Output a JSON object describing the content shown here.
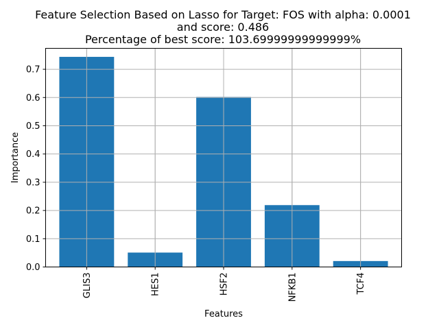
{
  "chart_data": {
    "type": "bar",
    "title": [
      "Feature Selection Based on Lasso for Target: FOS with alpha: 0.0001",
      "and score: 0.486",
      "Percentage of best score: 103.69999999999999%"
    ],
    "xlabel": "Features",
    "ylabel": "Importance",
    "categories": [
      "GLIS3",
      "HES1",
      "HSF2",
      "NFKB1",
      "TCF4"
    ],
    "values": [
      0.744,
      0.051,
      0.602,
      0.219,
      0.021
    ],
    "ylim": [
      0,
      0.7742
    ],
    "yticks": [
      0.0,
      0.1,
      0.2,
      0.3,
      0.4,
      0.5,
      0.6,
      0.7
    ],
    "ytick_labels": [
      "0.0",
      "0.1",
      "0.2",
      "0.3",
      "0.4",
      "0.5",
      "0.6",
      "0.7"
    ],
    "bar_color": "#1f77b4",
    "grid": true,
    "xtick_rotation": "vertical"
  }
}
